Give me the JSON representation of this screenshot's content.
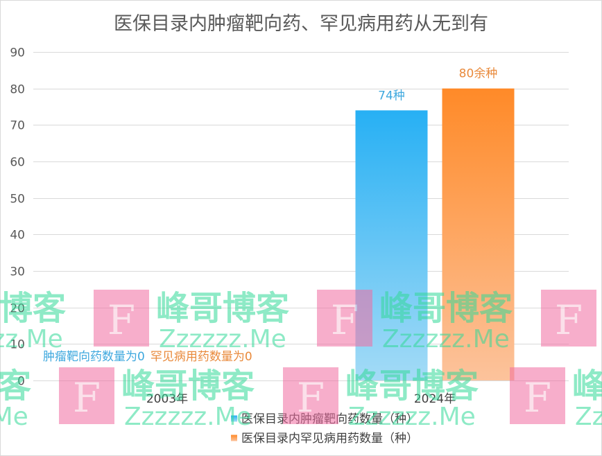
{
  "chart_data": {
    "type": "bar",
    "title": "医保目录内肿瘤靶向药、罕见病用药从无到有",
    "xlabel": "",
    "ylabel": "",
    "categories": [
      "2003年",
      "2024年"
    ],
    "series": [
      {
        "name": "医保目录内肿瘤靶向药数量（种）",
        "values": [
          0,
          74
        ],
        "labels": [
          "肿瘤靶向药数量为0",
          "74种"
        ],
        "gradient": [
          "#27b0f4",
          "#a4dbf6"
        ],
        "label_color": "#3ea8de"
      },
      {
        "name": "医保目录内罕见病用药数量（种）",
        "values": [
          0,
          80
        ],
        "labels": [
          "罕见病用药数量为0",
          "80余种"
        ],
        "gradient": [
          "#ff8a28",
          "#fcc39c"
        ],
        "label_color": "#e98a3c"
      }
    ],
    "ylim": [
      0,
      90
    ],
    "yticks": [
      0,
      10,
      20,
      30,
      40,
      50,
      60,
      70,
      80,
      90
    ],
    "grid": true,
    "legend": "bottom"
  },
  "watermark": {
    "logo": "F",
    "name": "峰哥博客",
    "site": "Zzzzzz.Me"
  }
}
